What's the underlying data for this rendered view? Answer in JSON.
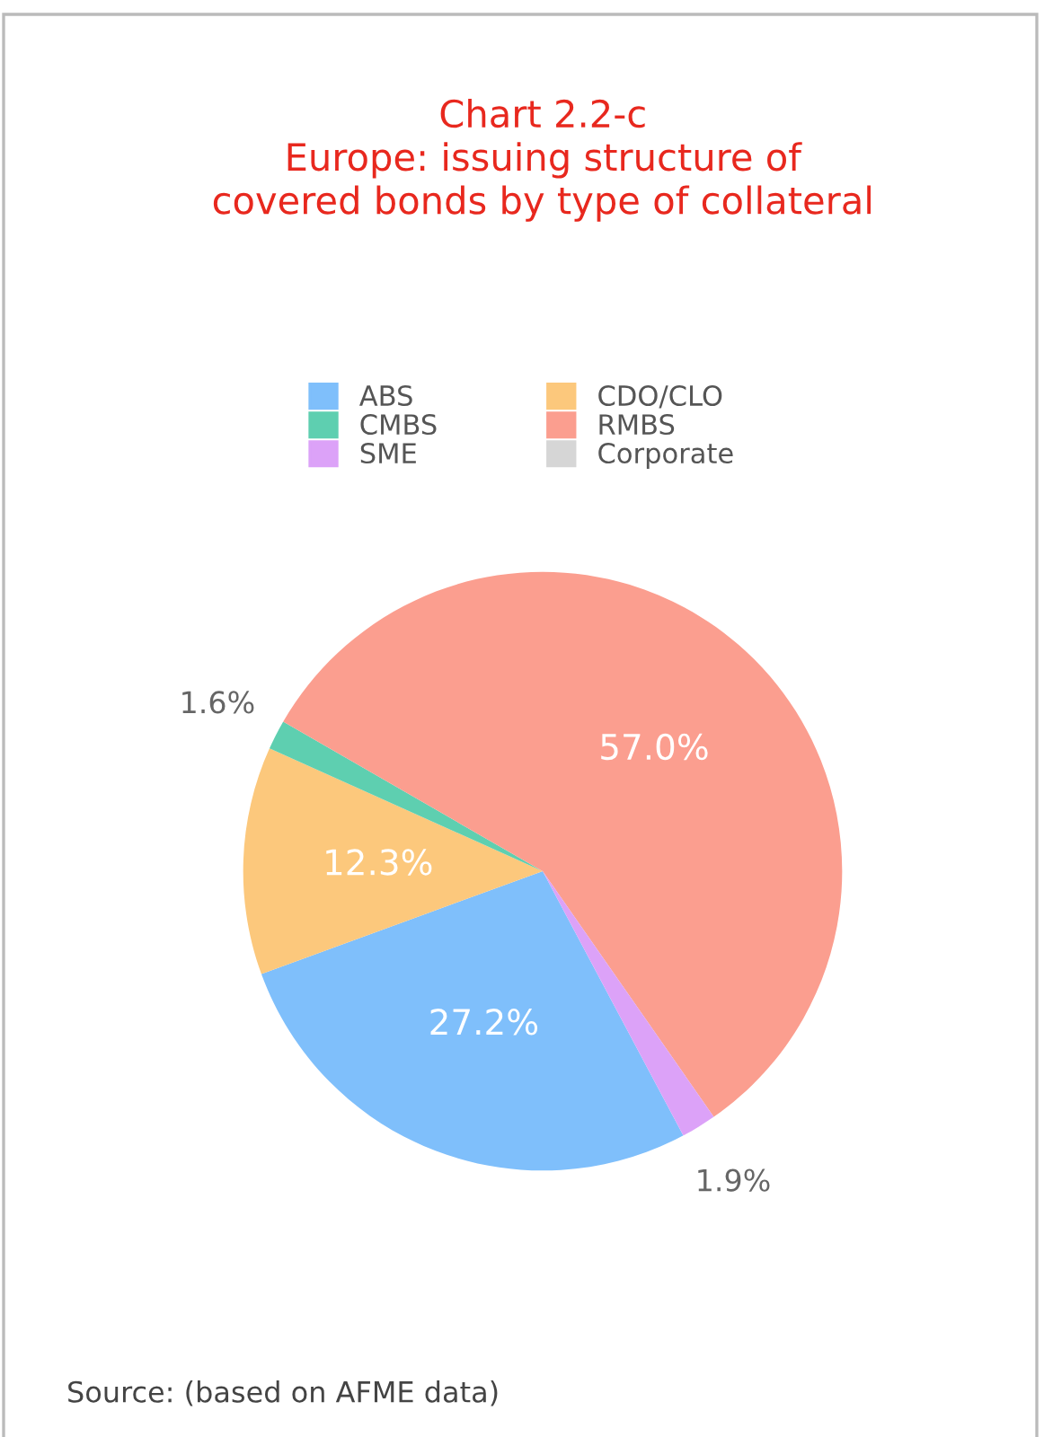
{
  "chart_data": {
    "type": "pie",
    "title": "Chart 2.2-c\nEurope: issuing structure of\ncovered bonds by type of collateral",
    "categories": [
      "ABS",
      "CDO/CLO",
      "CMBS",
      "RMBS",
      "SME",
      "Corporate"
    ],
    "values": [
      27.2,
      12.3,
      1.6,
      57.0,
      1.9,
      0
    ],
    "colors": [
      "#7fbffb",
      "#fcc87c",
      "#5ecfb0",
      "#fb9e8f",
      "#dca2f8",
      "#d6d6d6"
    ],
    "value_labels": [
      "27.2%",
      "12.3%",
      "1.6%",
      "57.0%",
      "1.9%",
      null
    ],
    "legend": "top",
    "annotations": [
      "Source: (based on AFME data)"
    ]
  }
}
